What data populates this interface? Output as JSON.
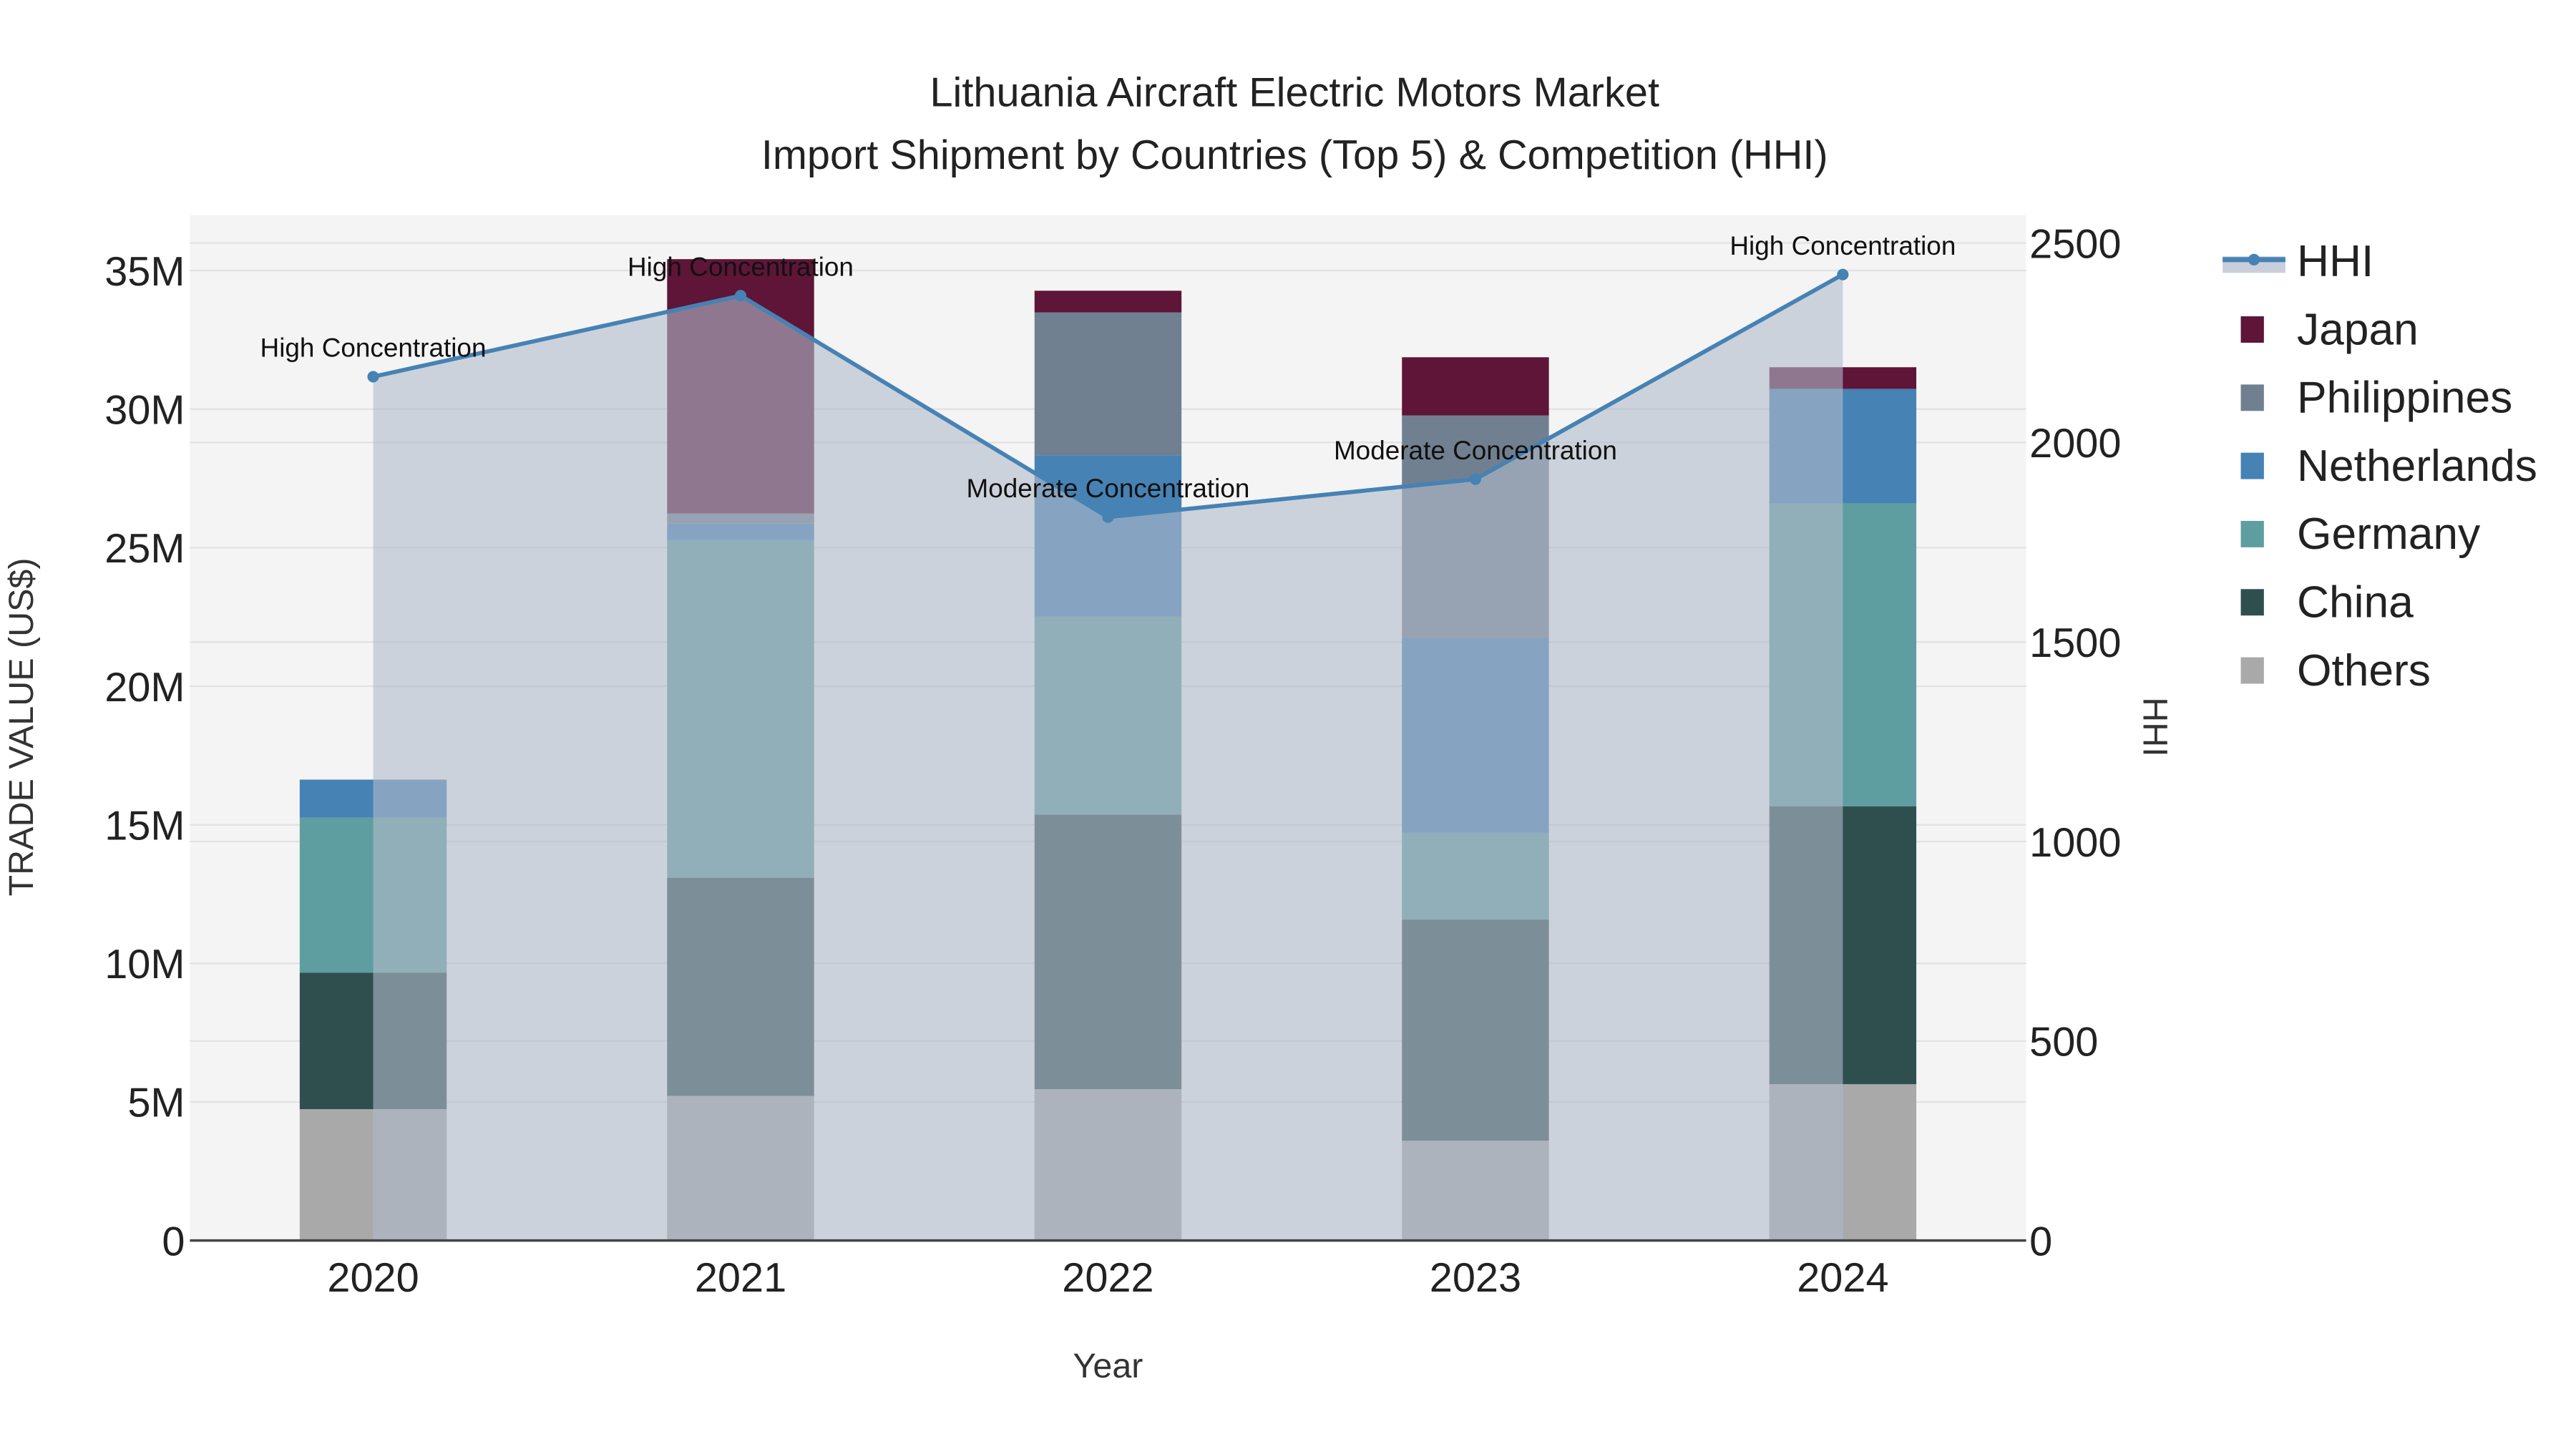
{
  "chart_data": {
    "type": "bar",
    "title_line1": "Lithuania Aircraft Electric Motors Market",
    "title_line2": "Import Shipment by Countries (Top 5) & Competition (HHI)",
    "xlabel": "Year",
    "ylabel": "TRADE VALUE (US$)",
    "y2label": "HHI",
    "categories": [
      "2020",
      "2021",
      "2022",
      "2023",
      "2024"
    ],
    "ylim": [
      0,
      37000000
    ],
    "y2lim": [
      0,
      2570
    ],
    "yticks": [
      0,
      5000000,
      10000000,
      15000000,
      20000000,
      25000000,
      30000000,
      35000000
    ],
    "ytick_labels": [
      "0",
      "5M",
      "10M",
      "15M",
      "20M",
      "25M",
      "30M",
      "35M"
    ],
    "y2ticks": [
      0,
      500,
      1000,
      1500,
      2000,
      2500
    ],
    "y2tick_labels": [
      "0",
      "500",
      "1000",
      "1500",
      "2000",
      "2500"
    ],
    "series": [
      {
        "name": "Others",
        "color": "#a9a9a9",
        "values": [
          4740000,
          5220000,
          5460000,
          3600000,
          5640000
        ]
      },
      {
        "name": "China",
        "color": "#2f4f4f",
        "values": [
          4920000,
          7870000,
          9910000,
          7980000,
          10030000
        ]
      },
      {
        "name": "Germany",
        "color": "#5f9ea0",
        "values": [
          5600000,
          12180000,
          7140000,
          3130000,
          10920000
        ]
      },
      {
        "name": "Netherlands",
        "color": "#4682b4",
        "values": [
          1370000,
          600000,
          5820000,
          7020000,
          4140000
        ]
      },
      {
        "name": "Philippines",
        "color": "#708090",
        "values": [
          0,
          360000,
          5160000,
          8040000,
          0
        ]
      },
      {
        "name": "Japan",
        "color": "#5e1537",
        "values": [
          0,
          9180000,
          780000,
          2100000,
          780000
        ]
      }
    ],
    "hhi": {
      "name": "HHI",
      "color": "#4682b4",
      "values": [
        2165,
        2368,
        1813,
        1908,
        2421
      ],
      "annotations": [
        "High Concentration",
        "High Concentration",
        "Moderate Concentration",
        "Moderate Concentration",
        "High Concentration"
      ]
    },
    "legend": [
      "HHI",
      "Japan",
      "Philippines",
      "Netherlands",
      "Germany",
      "China",
      "Others"
    ],
    "legend_placement": "right",
    "grid": true
  }
}
